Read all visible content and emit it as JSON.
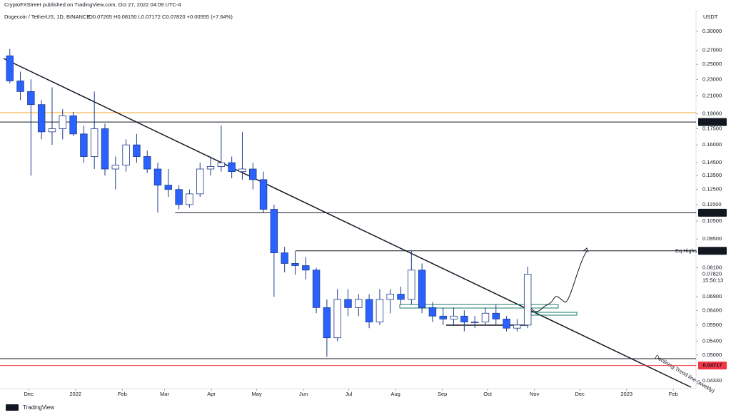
{
  "header": {
    "publisher": "CryptoFXStreet published on TradingView.com, Oct 27, 2022 04:09 UTC-4",
    "symbol": "Dogecoin / TetherUS, 1D, BINANCE",
    "ohlc": "O0.07265 H0.08150 L0.07172 C0.07820 +0.00555 (+7.64%)",
    "currency": "USDT"
  },
  "footer": {
    "brand": "TradingView"
  },
  "chart_data": {
    "type": "candlestick",
    "log_scale": true,
    "up_color": "#ffffff",
    "down_color": "#2962ff",
    "wick_color": "#1e3a8a",
    "x": [
      "2021-11-15",
      "2021-11-22",
      "2021-11-29",
      "2021-12-06",
      "2021-12-13",
      "2021-12-20",
      "2021-12-27",
      "2022-01-03",
      "2022-01-10",
      "2022-01-17",
      "2022-01-24",
      "2022-01-31",
      "2022-02-07",
      "2022-02-14",
      "2022-02-21",
      "2022-02-28",
      "2022-03-07",
      "2022-03-14",
      "2022-03-21",
      "2022-03-28",
      "2022-04-04",
      "2022-04-11",
      "2022-04-18",
      "2022-04-25",
      "2022-05-02",
      "2022-05-09",
      "2022-05-16",
      "2022-05-23",
      "2022-05-30",
      "2022-06-06",
      "2022-06-13",
      "2022-06-20",
      "2022-06-27",
      "2022-07-04",
      "2022-07-11",
      "2022-07-18",
      "2022-07-25",
      "2022-08-01",
      "2022-08-08",
      "2022-08-15",
      "2022-08-22",
      "2022-08-29",
      "2022-09-05",
      "2022-09-12",
      "2022-09-19",
      "2022-09-26",
      "2022-10-03",
      "2022-10-10",
      "2022-10-17",
      "2022-10-24"
    ],
    "open": [
      0.262,
      0.228,
      0.215,
      0.2,
      0.172,
      0.175,
      0.188,
      0.17,
      0.15,
      0.175,
      0.14,
      0.143,
      0.16,
      0.15,
      0.14,
      0.128,
      0.125,
      0.115,
      0.122,
      0.14,
      0.142,
      0.145,
      0.138,
      0.14,
      0.132,
      0.112,
      0.088,
      0.083,
      0.082,
      0.08,
      0.065,
      0.055,
      0.068,
      0.065,
      0.068,
      0.06,
      0.068,
      0.07,
      0.068,
      0.08,
      0.065,
      0.062,
      0.061,
      0.062,
      0.06,
      0.06,
      0.063,
      0.061,
      0.058,
      0.059
    ],
    "high": [
      0.272,
      0.24,
      0.23,
      0.205,
      0.22,
      0.195,
      0.192,
      0.178,
      0.215,
      0.18,
      0.15,
      0.165,
      0.17,
      0.155,
      0.145,
      0.14,
      0.128,
      0.125,
      0.145,
      0.15,
      0.178,
      0.15,
      0.172,
      0.145,
      0.138,
      0.115,
      0.091,
      0.089,
      0.086,
      0.081,
      0.068,
      0.072,
      0.072,
      0.07,
      0.07,
      0.072,
      0.072,
      0.073,
      0.089,
      0.083,
      0.067,
      0.065,
      0.065,
      0.064,
      0.062,
      0.065,
      0.066,
      0.062,
      0.061,
      0.0815
    ],
    "low": [
      0.225,
      0.205,
      0.135,
      0.165,
      0.16,
      0.165,
      0.168,
      0.145,
      0.14,
      0.135,
      0.125,
      0.138,
      0.145,
      0.137,
      0.11,
      0.12,
      0.112,
      0.113,
      0.12,
      0.135,
      0.138,
      0.133,
      0.132,
      0.125,
      0.11,
      0.069,
      0.079,
      0.078,
      0.076,
      0.063,
      0.0495,
      0.054,
      0.062,
      0.062,
      0.058,
      0.059,
      0.063,
      0.066,
      0.066,
      0.063,
      0.06,
      0.059,
      0.059,
      0.057,
      0.058,
      0.059,
      0.059,
      0.057,
      0.057,
      0.058
    ],
    "close": [
      0.228,
      0.215,
      0.2,
      0.172,
      0.175,
      0.188,
      0.17,
      0.15,
      0.175,
      0.14,
      0.143,
      0.16,
      0.15,
      0.14,
      0.128,
      0.125,
      0.115,
      0.122,
      0.14,
      0.142,
      0.145,
      0.138,
      0.14,
      0.132,
      0.112,
      0.088,
      0.083,
      0.082,
      0.08,
      0.065,
      0.055,
      0.068,
      0.065,
      0.068,
      0.06,
      0.068,
      0.07,
      0.068,
      0.08,
      0.065,
      0.062,
      0.061,
      0.062,
      0.06,
      0.06,
      0.063,
      0.061,
      0.058,
      0.059,
      0.0782
    ],
    "xlim": [
      "2021-11-12",
      "2023-02-16"
    ],
    "xticks": [
      {
        "value": "2021-12-01",
        "label": "Dec"
      },
      {
        "value": "2022-01-01",
        "label": "2022"
      },
      {
        "value": "2022-02-01",
        "label": "Feb"
      },
      {
        "value": "2022-03-01",
        "label": "Mar"
      },
      {
        "value": "2022-04-01",
        "label": "Apr"
      },
      {
        "value": "2022-05-01",
        "label": "May"
      },
      {
        "value": "2022-06-01",
        "label": "Jun"
      },
      {
        "value": "2022-07-01",
        "label": "Jul"
      },
      {
        "value": "2022-08-01",
        "label": "Aug"
      },
      {
        "value": "2022-09-01",
        "label": "Sep"
      },
      {
        "value": "2022-10-01",
        "label": "Oct"
      },
      {
        "value": "2022-11-01",
        "label": "Nov"
      },
      {
        "value": "2022-12-01",
        "label": "Dec"
      },
      {
        "value": "2023-01-01",
        "label": "2023"
      },
      {
        "value": "2023-02-01",
        "label": "Feb"
      }
    ],
    "ylim": [
      0.0415,
      0.3324
    ],
    "yticks": [
      {
        "value": 0.3,
        "label": "0.30000"
      },
      {
        "value": 0.27,
        "label": "0.27000"
      },
      {
        "value": 0.25,
        "label": "0.25000"
      },
      {
        "value": 0.23,
        "label": "0.23000"
      },
      {
        "value": 0.21,
        "label": "0.21000"
      },
      {
        "value": 0.19,
        "label": "0.19000"
      },
      {
        "value": 0.175,
        "label": "0.17500"
      },
      {
        "value": 0.16,
        "label": "0.16000"
      },
      {
        "value": 0.145,
        "label": "0.14500"
      },
      {
        "value": 0.135,
        "label": "0.13500"
      },
      {
        "value": 0.125,
        "label": "0.12500"
      },
      {
        "value": 0.115,
        "label": "0.11500"
      },
      {
        "value": 0.105,
        "label": "0.10500"
      },
      {
        "value": 0.095,
        "label": "0.09500"
      },
      {
        "value": 0.081,
        "label": "0.08100"
      },
      {
        "value": 0.069,
        "label": "0.06900"
      },
      {
        "value": 0.064,
        "label": "0.06400"
      },
      {
        "value": 0.059,
        "label": "0.05900"
      },
      {
        "value": 0.054,
        "label": "0.05400"
      },
      {
        "value": 0.05,
        "label": "0.05000"
      },
      {
        "value": 0.0433,
        "label": "0.04330"
      }
    ],
    "levels": [
      {
        "value": 0.18157,
        "color": "#131722",
        "from": "2021-11-12"
      },
      {
        "value": 0.1099,
        "label": "0.10990",
        "color": "#131722",
        "from": "2022-03-08"
      },
      {
        "value": 0.089,
        "label": "0.08900",
        "color": "#131722",
        "from": "2022-05-27"
      },
      {
        "value": 0.04717,
        "color": "#f23645",
        "from": "2021-11-12"
      }
    ],
    "last_price": {
      "value": 0.0782,
      "label": "0.07820"
    },
    "countdown": "15:50:13",
    "annotations": {
      "eq_highs": "Eq Highs",
      "trend": "Declining Trend line (weekly)"
    }
  }
}
